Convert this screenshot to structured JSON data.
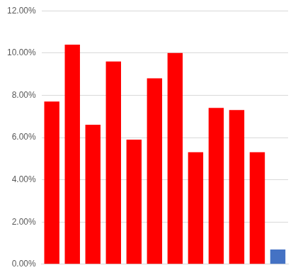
{
  "chart_data": {
    "type": "bar",
    "categories": [
      null,
      null,
      null,
      null,
      null,
      null,
      null,
      null,
      null,
      null,
      null,
      null
    ],
    "values": [
      7.7,
      10.4,
      6.6,
      9.6,
      5.9,
      8.8,
      10.0,
      5.3,
      7.4,
      7.3,
      5.3,
      0.7
    ],
    "colors": [
      "#ff0000",
      "#ff0000",
      "#ff0000",
      "#ff0000",
      "#ff0000",
      "#ff0000",
      "#ff0000",
      "#ff0000",
      "#ff0000",
      "#ff0000",
      "#ff0000",
      "#4472c4"
    ],
    "ylim": [
      0,
      12
    ],
    "yticks": [
      {
        "value": 0,
        "label": "0.00%"
      },
      {
        "value": 2,
        "label": "2.00%"
      },
      {
        "value": 4,
        "label": "4.00%"
      },
      {
        "value": 6,
        "label": "6.00%"
      },
      {
        "value": 8,
        "label": "8.00%"
      },
      {
        "value": 10,
        "label": "10.00%"
      },
      {
        "value": 12,
        "label": "12.00%"
      }
    ],
    "grid": true,
    "tick_labels": "y"
  }
}
